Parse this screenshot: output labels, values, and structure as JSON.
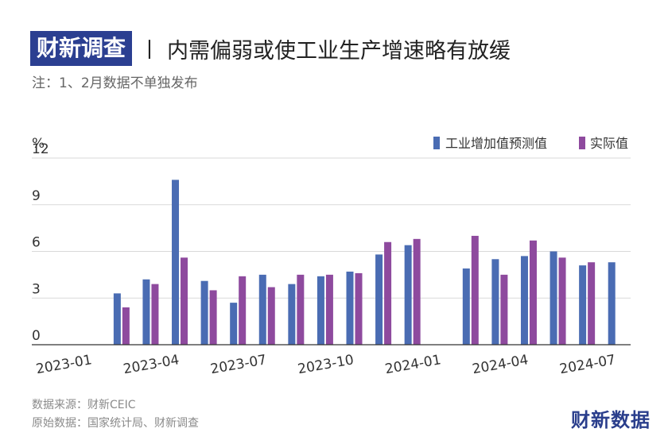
{
  "header": {
    "brand_tag": "财新调查",
    "separator": "丨",
    "title": "内需偏弱或使工业生产增速略有放缓",
    "note": "注：1、2月数据不单独发布"
  },
  "footer": {
    "source": "数据来源：财新CEIC",
    "raw": "原始数据：国家统计局、财新调查",
    "logo": "财新数据"
  },
  "chart_data": {
    "type": "bar",
    "unit_label": "%",
    "ylim": [
      0,
      12
    ],
    "yticks": [
      0,
      3,
      6,
      9,
      12
    ],
    "grid": true,
    "legend_position": "top-right",
    "categories": [
      "2023-01",
      "2023-02",
      "2023-03",
      "2023-04",
      "2023-05",
      "2023-06",
      "2023-07",
      "2023-08",
      "2023-09",
      "2023-10",
      "2023-11",
      "2023-12",
      "2024-01",
      "2024-02",
      "2024-03",
      "2024-04",
      "2024-05",
      "2024-06",
      "2024-07"
    ],
    "x_tick_labels": [
      "2023-01",
      "2023-04",
      "2023-07",
      "2023-10",
      "2024-01",
      "2024-04",
      "2024-07"
    ],
    "series": [
      {
        "name": "工业增加值预测值",
        "color": "#4a6cb3",
        "values": [
          null,
          3.3,
          4.2,
          10.6,
          4.1,
          2.7,
          4.5,
          3.9,
          4.4,
          4.7,
          5.8,
          6.4,
          null,
          4.9,
          5.5,
          5.7,
          6.0,
          5.1,
          5.3
        ]
      },
      {
        "name": "实际值",
        "color": "#8e4a9e",
        "values": [
          null,
          2.4,
          3.9,
          5.6,
          3.5,
          4.4,
          3.7,
          4.5,
          4.5,
          4.6,
          6.6,
          6.8,
          null,
          7.0,
          4.5,
          6.7,
          5.6,
          5.3,
          null
        ]
      }
    ]
  }
}
